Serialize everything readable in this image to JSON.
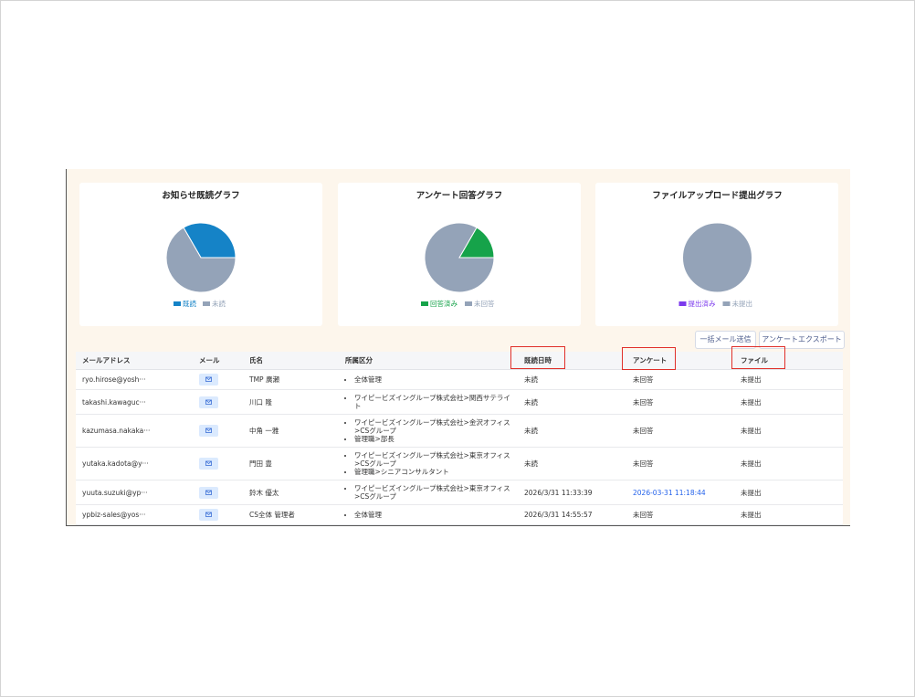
{
  "chart_data": [
    {
      "type": "pie",
      "title": "お知らせ既読グラフ",
      "categories": [
        "既読",
        "未読"
      ],
      "values": [
        2,
        4
      ],
      "colors": [
        "#1583c7",
        "#94a3b8"
      ]
    },
    {
      "type": "pie",
      "title": "アンケート回答グラフ",
      "categories": [
        "回答済み",
        "未回答"
      ],
      "values": [
        1,
        5
      ],
      "colors": [
        "#16a34a",
        "#94a3b8"
      ]
    },
    {
      "type": "pie",
      "title": "ファイルアップロード提出グラフ",
      "categories": [
        "提出済み",
        "未提出"
      ],
      "values": [
        0,
        6
      ],
      "colors": [
        "#7c3aed",
        "#94a3b8"
      ]
    }
  ],
  "buttons": [
    "一括メール送信",
    "アンケートエクスポート"
  ],
  "table": {
    "headers": [
      "メールアドレス",
      "メール",
      "氏名",
      "所属区分",
      "既読日時",
      "アンケート",
      "ファイル"
    ],
    "rows": [
      {
        "email": "ryo.hirose@yosh···",
        "name": "TMP 廣瀬",
        "groups": [
          "全体管理"
        ],
        "read": "未読",
        "survey": "未回答",
        "file": "未提出"
      },
      {
        "email": "takashi.kawaguc···",
        "name": "川口 隆",
        "groups": [
          "ワイピービズイングループ株式会社>関西サテライト"
        ],
        "read": "未読",
        "survey": "未回答",
        "file": "未提出"
      },
      {
        "email": "kazumasa.nakaka···",
        "name": "中角 一雅",
        "groups": [
          "ワイピービズイングループ株式会社>金沢オフィス>CSグループ",
          "管理職>部長"
        ],
        "read": "未読",
        "survey": "未回答",
        "file": "未提出"
      },
      {
        "email": "yutaka.kadota@y···",
        "name": "門田 豊",
        "groups": [
          "ワイピービズイングループ株式会社>東京オフィス>CSグループ",
          "管理職>シニアコンサルタント"
        ],
        "read": "未読",
        "survey": "未回答",
        "file": "未提出"
      },
      {
        "email": "yuuta.suzuki@yp···",
        "name": "鈴木 優太",
        "groups": [
          "ワイピービズイングループ株式会社>東京オフィス>CSグループ"
        ],
        "read": "2026/3/31 11:33:39",
        "survey": "2026-03-31 11:18:44",
        "file": "未提出"
      },
      {
        "email": "ypbiz-sales@yos···",
        "name": "CS全体 管理者",
        "groups": [
          "全体管理"
        ],
        "read": "2026/3/31 14:55:57",
        "survey": "未回答",
        "file": "未提出"
      }
    ]
  }
}
